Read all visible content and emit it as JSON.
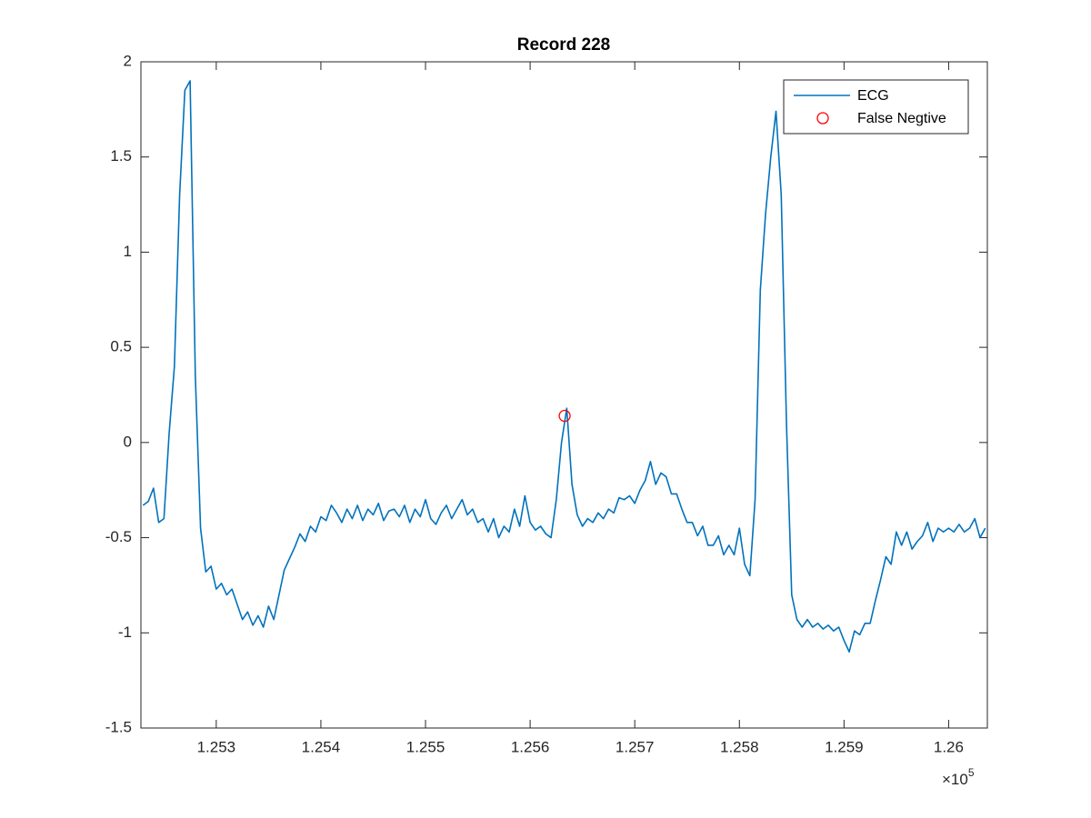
{
  "chart_data": {
    "type": "line",
    "title": "Record 228",
    "xlim": [
      125228,
      126037
    ],
    "ylim": [
      -1.5,
      2
    ],
    "xticks": [
      {
        "value": 125300,
        "label": "1.253"
      },
      {
        "value": 125400,
        "label": "1.254"
      },
      {
        "value": 125500,
        "label": "1.255"
      },
      {
        "value": 125600,
        "label": "1.256"
      },
      {
        "value": 125700,
        "label": "1.257"
      },
      {
        "value": 125800,
        "label": "1.258"
      },
      {
        "value": 125900,
        "label": "1.259"
      },
      {
        "value": 126000,
        "label": "1.26"
      }
    ],
    "yticks": [
      -1.5,
      -1,
      -0.5,
      0,
      0.5,
      1,
      1.5,
      2
    ],
    "x_multiplier": {
      "base": "×10",
      "exponent": "5"
    },
    "legend_position": "northeast",
    "grid": false,
    "series": [
      {
        "name": "ECG",
        "type": "line",
        "color": "#0072BD",
        "x": [
          125230,
          125235,
          125240,
          125245,
          125250,
          125255,
          125260,
          125265,
          125270,
          125275,
          125280,
          125285,
          125290,
          125295,
          125300,
          125305,
          125310,
          125315,
          125320,
          125325,
          125330,
          125335,
          125340,
          125345,
          125350,
          125355,
          125360,
          125365,
          125370,
          125375,
          125380,
          125385,
          125390,
          125395,
          125400,
          125405,
          125410,
          125415,
          125420,
          125425,
          125430,
          125435,
          125440,
          125445,
          125450,
          125455,
          125460,
          125465,
          125470,
          125475,
          125480,
          125485,
          125490,
          125495,
          125500,
          125505,
          125510,
          125515,
          125520,
          125525,
          125530,
          125535,
          125540,
          125545,
          125550,
          125555,
          125560,
          125565,
          125570,
          125575,
          125580,
          125585,
          125590,
          125595,
          125600,
          125605,
          125610,
          125615,
          125620,
          125625,
          125630,
          125635,
          125640,
          125645,
          125650,
          125655,
          125660,
          125665,
          125670,
          125675,
          125680,
          125685,
          125690,
          125695,
          125700,
          125705,
          125710,
          125715,
          125720,
          125725,
          125730,
          125735,
          125740,
          125745,
          125750,
          125755,
          125760,
          125765,
          125770,
          125775,
          125780,
          125785,
          125790,
          125795,
          125800,
          125805,
          125810,
          125815,
          125820,
          125825,
          125830,
          125835,
          125840,
          125845,
          125850,
          125855,
          125860,
          125865,
          125870,
          125875,
          125880,
          125885,
          125890,
          125895,
          125900,
          125905,
          125910,
          125915,
          125920,
          125925,
          125930,
          125935,
          125940,
          125945,
          125950,
          125955,
          125960,
          125965,
          125970,
          125975,
          125980,
          125985,
          125990,
          125995,
          126000,
          126005,
          126010,
          126015,
          126020,
          126025,
          126030,
          126035
        ],
        "values": [
          -0.33,
          -0.31,
          -0.24,
          -0.42,
          -0.4,
          0.05,
          0.4,
          1.3,
          1.85,
          1.9,
          0.35,
          -0.45,
          -0.68,
          -0.65,
          -0.77,
          -0.74,
          -0.8,
          -0.77,
          -0.85,
          -0.93,
          -0.89,
          -0.96,
          -0.91,
          -0.97,
          -0.86,
          -0.93,
          -0.8,
          -0.67,
          -0.61,
          -0.55,
          -0.48,
          -0.52,
          -0.44,
          -0.47,
          -0.39,
          -0.41,
          -0.33,
          -0.37,
          -0.42,
          -0.35,
          -0.4,
          -0.33,
          -0.41,
          -0.35,
          -0.38,
          -0.32,
          -0.41,
          -0.36,
          -0.35,
          -0.39,
          -0.33,
          -0.42,
          -0.35,
          -0.39,
          -0.3,
          -0.4,
          -0.43,
          -0.37,
          -0.33,
          -0.4,
          -0.35,
          -0.3,
          -0.38,
          -0.35,
          -0.42,
          -0.4,
          -0.47,
          -0.4,
          -0.5,
          -0.44,
          -0.47,
          -0.35,
          -0.44,
          -0.28,
          -0.42,
          -0.46,
          -0.44,
          -0.48,
          -0.5,
          -0.3,
          0.0,
          0.18,
          -0.22,
          -0.38,
          -0.44,
          -0.4,
          -0.42,
          -0.37,
          -0.4,
          -0.35,
          -0.37,
          -0.29,
          -0.3,
          -0.28,
          -0.32,
          -0.25,
          -0.2,
          -0.1,
          -0.22,
          -0.16,
          -0.18,
          -0.27,
          -0.27,
          -0.35,
          -0.42,
          -0.42,
          -0.49,
          -0.44,
          -0.54,
          -0.54,
          -0.49,
          -0.59,
          -0.54,
          -0.59,
          -0.45,
          -0.64,
          -0.7,
          -0.3,
          0.8,
          1.2,
          1.5,
          1.74,
          1.3,
          0.1,
          -0.8,
          -0.93,
          -0.97,
          -0.93,
          -0.97,
          -0.95,
          -0.98,
          -0.96,
          -0.99,
          -0.97,
          -1.04,
          -1.1,
          -0.99,
          -1.01,
          -0.95,
          -0.95,
          -0.83,
          -0.72,
          -0.6,
          -0.64,
          -0.47,
          -0.54,
          -0.47,
          -0.56,
          -0.52,
          -0.49,
          -0.42,
          -0.52,
          -0.45,
          -0.47,
          -0.45,
          -0.47,
          -0.43,
          -0.47,
          -0.45,
          -0.4,
          -0.5,
          -0.45
        ]
      },
      {
        "name": "False Negtive",
        "type": "scatter",
        "color": "#FF0000",
        "x": [
          125633
        ],
        "values": [
          0.14
        ]
      }
    ]
  }
}
